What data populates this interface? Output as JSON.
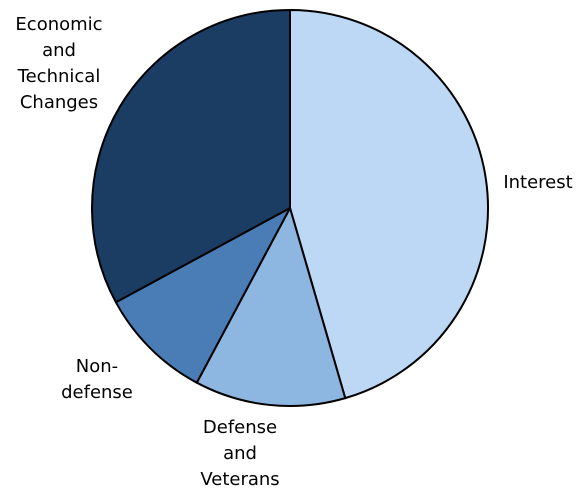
{
  "chart_data": {
    "type": "pie",
    "title": "",
    "start_angle_deg": 0,
    "direction": "clockwise",
    "slices": [
      {
        "label": [
          "Interest"
        ],
        "value": 45.5,
        "color": "#bcd8f5"
      },
      {
        "label": [
          "Defense",
          "and",
          "Veterans"
        ],
        "value": 12.3,
        "color": "#8db6e0"
      },
      {
        "label": [
          "Non-",
          "defense"
        ],
        "value": 9.3,
        "color": "#4a7db5"
      },
      {
        "label": [
          "Economic",
          "and",
          "Technical",
          "Changes"
        ],
        "value": 32.9,
        "color": "#1b3d63"
      }
    ]
  }
}
